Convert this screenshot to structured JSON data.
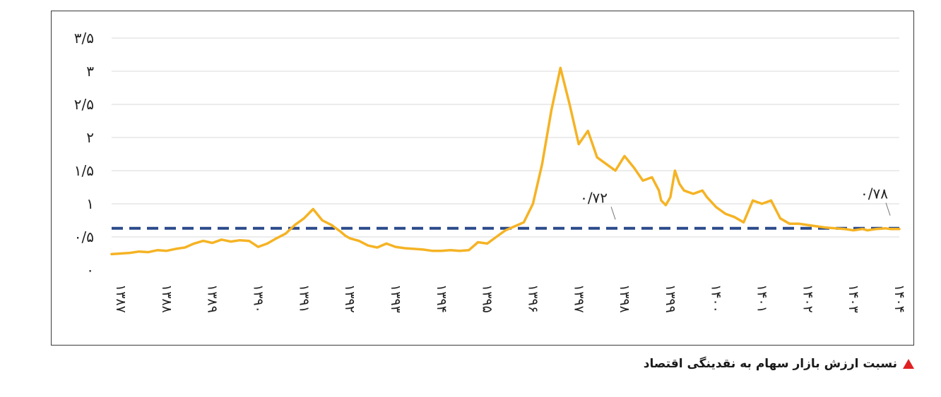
{
  "caption": {
    "text": "نسبت ارزش بازار سهام به نقدینگی اقتصاد",
    "marker_color": "#e02020"
  },
  "chart_data": {
    "type": "line",
    "title": "",
    "xlabel": "",
    "ylabel": "",
    "ylim": [
      0,
      3.5
    ],
    "y_ticks": [
      0,
      0.5,
      1,
      1.5,
      2,
      2.5,
      3,
      3.5
    ],
    "y_tick_labels": [
      "۰",
      "۰/۵",
      "۱",
      "۱/۵",
      "۲",
      "۲/۵",
      "۳",
      "۳/۵"
    ],
    "xlim": [
      1387,
      1404.2
    ],
    "x_ticks": [
      1387,
      1388,
      1389,
      1390,
      1391,
      1392,
      1393,
      1394,
      1395,
      1396,
      1397,
      1398,
      1399,
      1400,
      1401,
      1402,
      1403,
      1404
    ],
    "x_tick_labels": [
      "۱۳۸۷",
      "۱۳۸۸",
      "۱۳۸۹",
      "۱۳۹۰",
      "۱۳۹۱",
      "۱۳۹۲",
      "۱۳۹۳",
      "۱۳۹۴",
      "۱۳۹۵",
      "۱۳۹۶",
      "۱۳۹۷",
      "۱۳۹۸",
      "۱۳۹۹",
      "۱۴۰۰",
      "۱۴۰۱",
      "۱۴۰۲",
      "۱۴۰۳",
      "۱۴۰۴"
    ],
    "grid": "horizontal",
    "series": [
      {
        "name": "نسبت ارزش بازار سهام به نقدینگی",
        "color": "#f5b324",
        "x": [
          1387.0,
          1387.2,
          1387.4,
          1387.6,
          1387.8,
          1388.0,
          1388.2,
          1388.4,
          1388.6,
          1388.8,
          1389.0,
          1389.2,
          1389.4,
          1389.6,
          1389.8,
          1390.0,
          1390.2,
          1390.4,
          1390.6,
          1390.8,
          1391.0,
          1391.2,
          1391.4,
          1391.6,
          1391.8,
          1392.0,
          1392.1,
          1392.2,
          1392.4,
          1392.6,
          1392.8,
          1393.0,
          1393.2,
          1393.4,
          1393.6,
          1393.8,
          1394.0,
          1394.2,
          1394.4,
          1394.6,
          1394.8,
          1395.0,
          1395.2,
          1395.4,
          1395.6,
          1395.8,
          1396.0,
          1396.2,
          1396.4,
          1396.6,
          1396.8,
          1397.0,
          1397.2,
          1397.4,
          1397.6,
          1397.8,
          1398.0,
          1398.2,
          1398.4,
          1398.6,
          1398.8,
          1398.95,
          1399.0,
          1399.1,
          1399.2,
          1399.3,
          1399.4,
          1399.5,
          1399.7,
          1399.9,
          1400.0,
          1400.2,
          1400.4,
          1400.6,
          1400.8,
          1401.0,
          1401.2,
          1401.4,
          1401.6,
          1401.8,
          1402.0,
          1402.2,
          1402.4,
          1402.6,
          1402.8,
          1403.0,
          1403.2,
          1403.4,
          1403.5,
          1403.7,
          1403.9,
          1404.0,
          1404.2
        ],
        "values": [
          0.24,
          0.25,
          0.26,
          0.28,
          0.27,
          0.3,
          0.29,
          0.32,
          0.34,
          0.4,
          0.44,
          0.41,
          0.46,
          0.43,
          0.45,
          0.44,
          0.35,
          0.4,
          0.48,
          0.55,
          0.68,
          0.78,
          0.92,
          0.75,
          0.68,
          0.58,
          0.52,
          0.48,
          0.44,
          0.37,
          0.34,
          0.4,
          0.35,
          0.33,
          0.32,
          0.31,
          0.29,
          0.29,
          0.3,
          0.29,
          0.3,
          0.42,
          0.4,
          0.5,
          0.6,
          0.66,
          0.72,
          1.0,
          1.6,
          2.4,
          3.05,
          2.5,
          1.9,
          2.1,
          1.7,
          1.6,
          1.5,
          1.72,
          1.55,
          1.35,
          1.4,
          1.2,
          1.05,
          0.98,
          1.1,
          1.5,
          1.3,
          1.2,
          1.15,
          1.2,
          1.1,
          0.95,
          0.85,
          0.8,
          0.72,
          1.05,
          1.0,
          1.05,
          0.78,
          0.7,
          0.7,
          0.68,
          0.66,
          0.64,
          0.63,
          0.62,
          0.6,
          0.62,
          0.6,
          0.62,
          0.63,
          0.62,
          0.62
        ],
        "comment": "see annotations"
      }
    ],
    "reference_line": {
      "value": 0.63,
      "style": "dashed",
      "color": "#2a4a8a"
    },
    "annotations": [
      {
        "text": "۰/۷۲",
        "x": 1398.0,
        "y": 0.72
      },
      {
        "text": "۰/۷۸",
        "x": 1404.0,
        "y": 0.78
      }
    ]
  }
}
